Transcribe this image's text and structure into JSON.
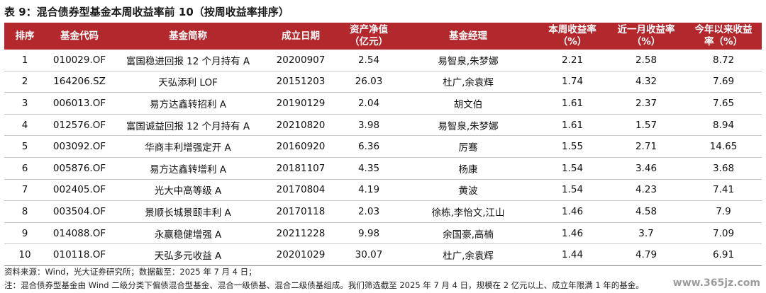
{
  "title": "表 9：混合债券型基金本周收益率前 10（按周收益率排序）",
  "table": {
    "headers": [
      "排序",
      "基金代码",
      "基金简称",
      "成立日期",
      "资产净值\n（亿元）",
      "基金经理",
      "本周收益率\n（%）",
      "近一月收益率\n（%）",
      "今年以来收益\n率（%）"
    ],
    "rows": [
      [
        "1",
        "010029.OF",
        "富国稳进回报 12 个月持有 A",
        "20200907",
        "2.54",
        "易智泉,朱梦娜",
        "2.21",
        "2.58",
        "8.72"
      ],
      [
        "2",
        "164206.SZ",
        "天弘添利 LOF",
        "20151203",
        "26.03",
        "杜广,余袁辉",
        "1.74",
        "4.32",
        "7.69"
      ],
      [
        "3",
        "006013.OF",
        "易方达鑫转招利 A",
        "20190129",
        "2.04",
        "胡文伯",
        "1.61",
        "2.37",
        "7.65"
      ],
      [
        "4",
        "012576.OF",
        "富国诚益回报 12 个月持有 A",
        "20210820",
        "3.98",
        "易智泉,朱梦娜",
        "1.61",
        "1.57",
        "8.94"
      ],
      [
        "5",
        "003092.OF",
        "华商丰利增强定开 A",
        "20160920",
        "6.36",
        "厉骞",
        "1.55",
        "2.71",
        "14.65"
      ],
      [
        "6",
        "005876.OF",
        "易方达鑫转增利 A",
        "20181107",
        "4.35",
        "杨康",
        "1.54",
        "3.46",
        "3.68"
      ],
      [
        "7",
        "002405.OF",
        "光大中高等级 A",
        "20170804",
        "4.19",
        "黄波",
        "1.54",
        "4.23",
        "7.41"
      ],
      [
        "8",
        "003504.OF",
        "景顺长城景颐丰利 A",
        "20170118",
        "2.03",
        "徐栋,李怡文,江山",
        "1.46",
        "4.58",
        "7.9"
      ],
      [
        "9",
        "014088.OF",
        "永赢稳健增强 A",
        "20211228",
        "9.98",
        "余国豪,高楠",
        "1.46",
        "3.7",
        "7.09"
      ],
      [
        "10",
        "010118.OF",
        "天弘多元收益 A",
        "20201029",
        "30.07",
        "杜广,余袁辉",
        "1.44",
        "4.79",
        "6.91"
      ]
    ]
  },
  "notes": {
    "source": "资料来源：Wind，光大证券研究所；数据截至：2025 年 7 月 4 日；",
    "note": "注：混合债券型基金由 Wind 二级分类下偏债混合型基金、混合一级债基、混合二级债基组成。我们筛选截至 2025 年 7 月 4 日，规模在 2 亿元以上、成立年限满 1 年的基金。"
  },
  "watermark": "www.365jz.com",
  "colors": {
    "header_bg": "#b3282d",
    "header_text": "#ffffff"
  }
}
